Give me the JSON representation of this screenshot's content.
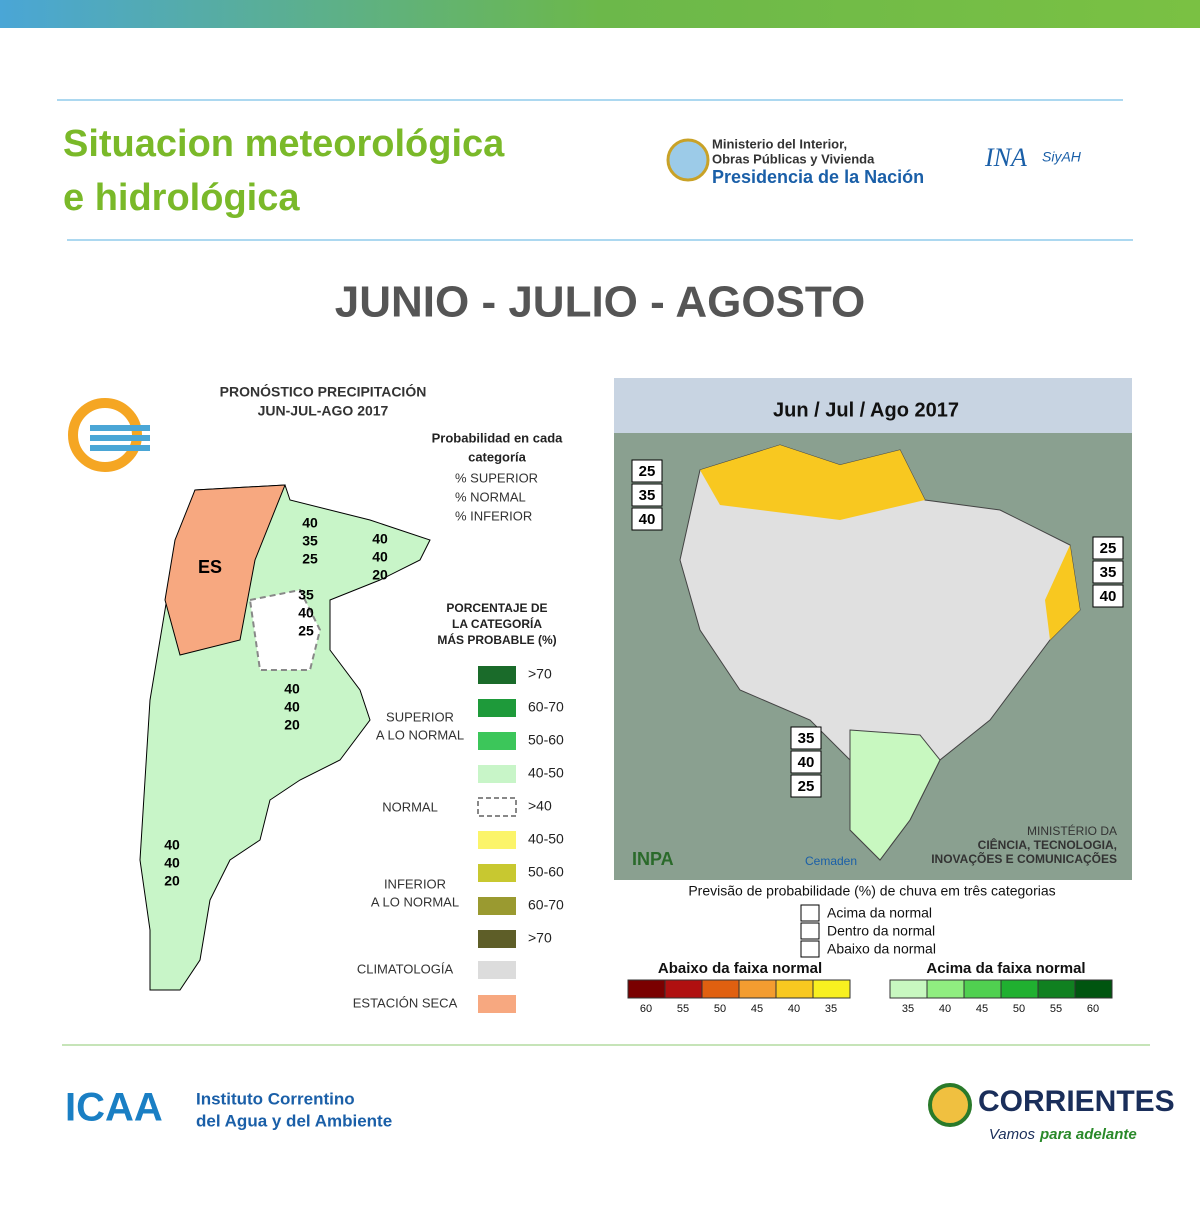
{
  "header": {
    "title": [
      "Situacion meteorológica",
      "e hidrológica"
    ],
    "ministry": [
      "Ministerio del Interior,",
      "Obras Públicas y Vivienda",
      "Presidencia de la Nación"
    ],
    "ina": "INA",
    "siyah": "SiyAH"
  },
  "period": "JUNIO - JULIO - AGOSTO",
  "left_map": {
    "title": [
      "PRONÓSTICO PRECIPITACIÓN",
      "JUN-JUL-AGO 2017"
    ],
    "prob_heading": [
      "Probabilidad en cada",
      "categoría"
    ],
    "prob_lines": [
      "% SUPERIOR",
      "% NORMAL",
      "% INFERIOR"
    ],
    "pct_heading": [
      "PORCENTAJE DE",
      "LA CATEGORÍA",
      "MÁS PROBABLE (%)"
    ],
    "region_label": "ES",
    "region_values": [
      [
        "40",
        "35",
        "25"
      ],
      [
        "40",
        "40",
        "20"
      ],
      [
        "35",
        "40",
        "25"
      ],
      [
        "40",
        "40",
        "20"
      ],
      [
        "40",
        "40",
        "20"
      ]
    ],
    "groups": {
      "superior": [
        "SUPERIOR",
        "A LO NORMAL"
      ],
      "normal": "NORMAL",
      "inferior": [
        "INFERIOR",
        "A LO NORMAL"
      ]
    },
    "legend": [
      {
        "label": ">70",
        "color": "#1a6b2a"
      },
      {
        "label": "60-70",
        "color": "#1e9a3a"
      },
      {
        "label": "50-60",
        "color": "#3cc65a"
      },
      {
        "label": "40-50",
        "color": "#c8f5c8"
      },
      {
        "label": ">40",
        "color": "#ffffff"
      },
      {
        "label": "40-50",
        "color": "#fbf46a"
      },
      {
        "label": "50-60",
        "color": "#c8c830"
      },
      {
        "label": "60-70",
        "color": "#9a9a30"
      },
      {
        "label": ">70",
        "color": "#5e5e28"
      }
    ],
    "extra_legend": [
      {
        "label": "CLIMATOLOGÍA",
        "color": "#dcdcdc"
      },
      {
        "label": "ESTACIÓN SECA",
        "color": "#f7a880"
      }
    ]
  },
  "right_map": {
    "title": "Jun / Jul / Ago 2017",
    "boxes": [
      [
        "25",
        "35",
        "40"
      ],
      [
        "25",
        "35",
        "40"
      ],
      [
        "35",
        "40",
        "25"
      ]
    ],
    "logos": [
      "INPA",
      "Cemaden"
    ],
    "ministry": [
      "MINISTÉRIO DA",
      "CIÊNCIA, TECNOLOGIA,",
      "INOVAÇÕES E COMUNICAÇÕES"
    ],
    "caption": "Previsão de probabilidade (%) de chuva em três categorias",
    "checkboxes": [
      "Acima da normal",
      "Dentro da normal",
      "Abaixo da normal"
    ],
    "below": {
      "title": "Abaixo da faixa normal",
      "ticks": [
        "60",
        "55",
        "50",
        "45",
        "40",
        "35"
      ],
      "colors": [
        "#7a0000",
        "#b01010",
        "#e06010",
        "#f39c30",
        "#f8c820",
        "#f8f020"
      ]
    },
    "above": {
      "title": "Acima da faixa normal",
      "ticks": [
        "35",
        "40",
        "45",
        "50",
        "55",
        "60"
      ],
      "colors": [
        "#c8f8c0",
        "#90ee80",
        "#50d050",
        "#20b030",
        "#108020",
        "#005510"
      ]
    }
  },
  "footer": {
    "icaa": "ICAA",
    "icaa_name": [
      "Instituto Correntino",
      "del Agua y del Ambiente"
    ],
    "corrientes": "CORRIENTES",
    "tagline": [
      "Vamos",
      "para adelante"
    ]
  }
}
